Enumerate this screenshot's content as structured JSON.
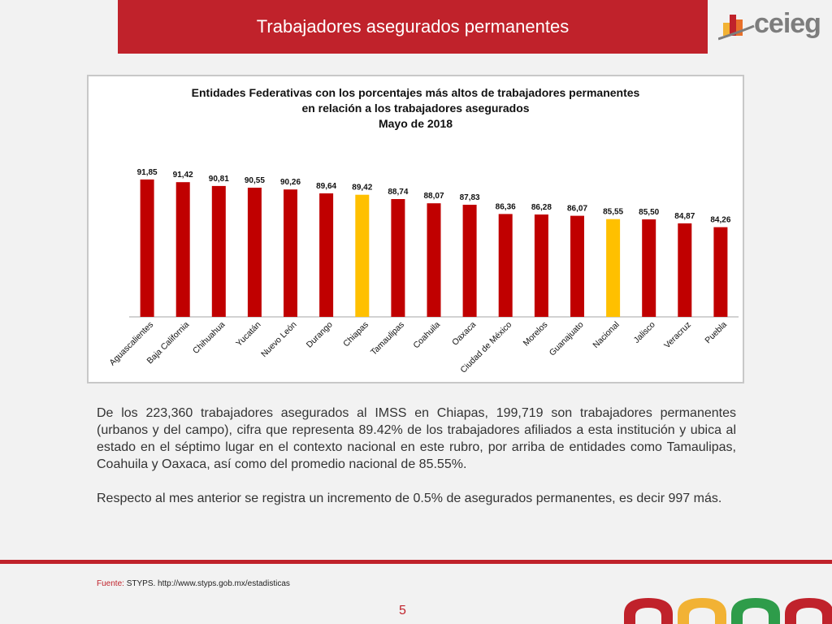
{
  "header": {
    "title": "Trabajadores asegurados permanentes",
    "logo_text": "ceieg"
  },
  "chart_data": {
    "type": "bar",
    "title": "Entidades Federativas con los porcentajes más altos de trabajadores permanentes",
    "subtitle": "en relación a los trabajadores asegurados",
    "period": "Mayo de 2018",
    "categories": [
      "Aguascalientes",
      "Baja California",
      "Chihuahua",
      "Yucatán",
      "Nuevo León",
      "Durango",
      "Chiapas",
      "Tamaulipas",
      "Coahuila",
      "Oaxaca",
      "Ciudad de México",
      "Morelos",
      "Guanajuato",
      "Nacional",
      "Jalisco",
      "Veracruz",
      "Puebla"
    ],
    "values": [
      91.85,
      91.42,
      90.81,
      90.55,
      90.26,
      89.64,
      89.42,
      88.74,
      88.07,
      87.83,
      86.36,
      86.28,
      86.07,
      85.55,
      85.5,
      84.87,
      84.26
    ],
    "value_labels": [
      "91,85",
      "91,42",
      "90,81",
      "90,55",
      "90,26",
      "89,64",
      "89,42",
      "88,74",
      "88,07",
      "87,83",
      "86,36",
      "86,28",
      "86,07",
      "85,55",
      "85,50",
      "84,87",
      "84,26"
    ],
    "ylim": [
      70,
      93
    ],
    "colors": {
      "default": "#c00000",
      "highlight": "#ffc000"
    },
    "highlighted": [
      "Chiapas",
      "Nacional"
    ],
    "grid": false,
    "legend": "none"
  },
  "body": {
    "paragraph1": "De los 223,360 trabajadores asegurados al IMSS en Chiapas, 199,719 son trabajadores permanentes (urbanos y del campo), cifra que representa 89.42% de los trabajadores afiliados a esta institución y ubica al estado en el séptimo lugar en el contexto nacional en este rubro, por arriba de entidades como Tamaulipas, Coahuila y Oaxaca, así como del promedio nacional de 85.55%.",
    "paragraph2": "Respecto al mes anterior se registra un incremento de 0.5% de asegurados permanentes, es decir 997 más."
  },
  "footer": {
    "source_label": "Fuente:",
    "source_text": "STYPS. http://www.styps.gob.mx/estadisticas",
    "page_number": "5"
  },
  "theme": {
    "accent": "#c0222b",
    "background": "#f2f2f2"
  }
}
